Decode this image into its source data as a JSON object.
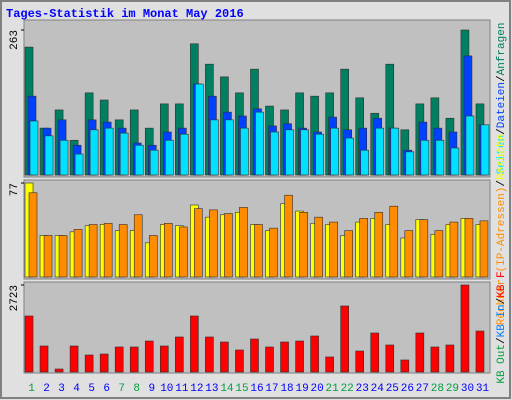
{
  "chart_data": [
    {
      "type": "bar",
      "title": "Tages-Statistik im Monat May 2016",
      "categories": [
        "1",
        "2",
        "3",
        "4",
        "5",
        "6",
        "7",
        "8",
        "9",
        "10",
        "11",
        "12",
        "13",
        "14",
        "15",
        "16",
        "17",
        "18",
        "19",
        "20",
        "21",
        "22",
        "23",
        "24",
        "25",
        "26",
        "27",
        "28",
        "29",
        "30",
        "31"
      ],
      "category_colors": [
        "#00a040",
        "#0000ff",
        "#0000ff",
        "#0000ff",
        "#0000ff",
        "#0000ff",
        "#00a040",
        "#00a040",
        "#0000ff",
        "#0000ff",
        "#0000ff",
        "#0000ff",
        "#0000ff",
        "#00a040",
        "#00a040",
        "#0000ff",
        "#0000ff",
        "#0000ff",
        "#0000ff",
        "#0000ff",
        "#00a040",
        "#00a040",
        "#0000ff",
        "#0000ff",
        "#0000ff",
        "#0000ff",
        "#0000ff",
        "#00a040",
        "#00a040",
        "#0000ff",
        "#0000ff"
      ],
      "ylim": [
        0,
        263
      ],
      "yticks": [
        263
      ],
      "legend_separator": "/",
      "series": [
        {
          "name": "Anfragen",
          "color": "#008060",
          "values": [
            232,
            85,
            118,
            63,
            149,
            136,
            100,
            118,
            85,
            129,
            129,
            238,
            201,
            178,
            149,
            192,
            125,
            118,
            149,
            143,
            149,
            192,
            140,
            112,
            201,
            82,
            129,
            140,
            103,
            263,
            129
          ]
        },
        {
          "name": "Dateien",
          "color": "#0040ff",
          "values": [
            143,
            85,
            100,
            54,
            100,
            96,
            85,
            58,
            54,
            78,
            85,
            165,
            143,
            114,
            107,
            120,
            89,
            93,
            85,
            78,
            105,
            82,
            85,
            103,
            85,
            45,
            96,
            85,
            78,
            216,
            91
          ]
        },
        {
          "name": "Seiten",
          "color": "#00e0ff",
          "values": [
            98,
            71,
            63,
            38,
            82,
            85,
            76,
            54,
            45,
            63,
            74,
            165,
            100,
            100,
            85,
            114,
            78,
            82,
            82,
            74,
            85,
            67,
            45,
            85,
            85,
            42,
            63,
            63,
            49,
            107,
            91
          ]
        }
      ]
    },
    {
      "type": "bar",
      "ylim": [
        0,
        77
      ],
      "yticks": [
        77
      ],
      "series": [
        {
          "name": "Besuche",
          "color": "#ffff00",
          "values": [
            77,
            34,
            34,
            37,
            42,
            43,
            38,
            38,
            28,
            43,
            42,
            59,
            49,
            51,
            53,
            43,
            38,
            60,
            54,
            44,
            43,
            34,
            45,
            48,
            43,
            32,
            47,
            35,
            43,
            48,
            43
          ]
        },
        {
          "name": "Rechner (IP-Adressen)",
          "color": "#ff8c00",
          "values": [
            69,
            34,
            34,
            39,
            43,
            44,
            43,
            51,
            34,
            44,
            41,
            56,
            55,
            52,
            57,
            43,
            40,
            67,
            53,
            49,
            45,
            38,
            48,
            53,
            58,
            38,
            47,
            38,
            45,
            48,
            46
          ]
        }
      ]
    },
    {
      "type": "bar",
      "ylim": [
        0,
        2723
      ],
      "yticks": [
        2723
      ],
      "series": [
        {
          "name": "KB F",
          "color": "#ff0000",
          "values": [
            1753,
            814,
            94,
            814,
            532,
            563,
            783,
            783,
            970,
            814,
            1096,
            1753,
            1096,
            939,
            689,
            1033,
            783,
            939,
            970,
            1127,
            470,
            2066,
            657,
            1221,
            845,
            376,
            1221,
            783,
            845,
            2723,
            1283
          ]
        },
        {
          "name": "KB In",
          "color": "#0080ff",
          "values": [
            null,
            null,
            null,
            null,
            null,
            null,
            null,
            null,
            null,
            null,
            null,
            null,
            null,
            null,
            null,
            null,
            null,
            null,
            null,
            null,
            null,
            null,
            null,
            null,
            null,
            null,
            null,
            null,
            null,
            null,
            null
          ]
        },
        {
          "name": "KB Out",
          "color": "#00a040",
          "values": [
            null,
            null,
            null,
            null,
            null,
            null,
            null,
            null,
            null,
            null,
            null,
            null,
            null,
            null,
            null,
            null,
            null,
            null,
            null,
            null,
            null,
            null,
            null,
            null,
            null,
            null,
            null,
            null,
            null,
            null,
            null
          ]
        }
      ]
    }
  ]
}
